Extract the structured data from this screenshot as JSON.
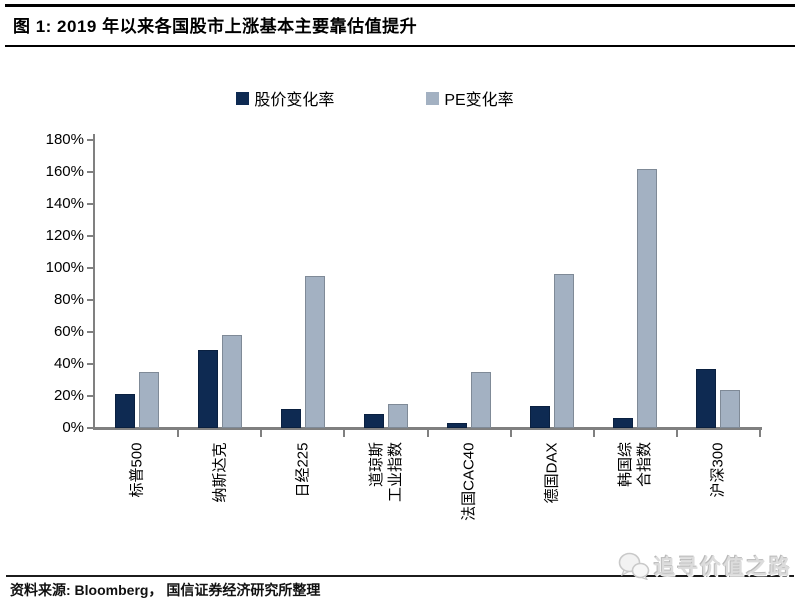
{
  "header": {
    "title": "图 1: 2019 年以来各国股市上涨基本主要靠估值提升"
  },
  "legend": [
    {
      "label": "股价变化率",
      "color": "#0e2a52"
    },
    {
      "label": "PE变化率",
      "color": "#a3b1c2"
    }
  ],
  "chart_data": {
    "type": "bar",
    "title": "2019 年以来各国股市上涨基本主要靠估值提升",
    "categories": [
      "标普500",
      "纳斯达克",
      "日经225",
      "道琼斯\n工业指数",
      "法国CAC40",
      "德国DAX",
      "韩国综\n合指数",
      "沪深300"
    ],
    "series": [
      {
        "name": "股价变化率",
        "color": "#0e2a52",
        "values": [
          21,
          49,
          12,
          9,
          3,
          14,
          6,
          37
        ]
      },
      {
        "name": "PE变化率",
        "color": "#a3b1c2",
        "values": [
          35,
          58,
          95,
          15,
          35,
          96,
          162,
          24
        ]
      }
    ],
    "xlabel": "",
    "ylabel": "",
    "ylim": [
      0,
      180
    ],
    "ytick_step": 20,
    "yticks": [
      "180%",
      "160%",
      "140%",
      "120%",
      "100%",
      "80%",
      "60%",
      "40%",
      "20%",
      "0%"
    ],
    "grid": false,
    "legend_position": "top",
    "unit": "percent"
  },
  "footer": {
    "source": "资料来源: Bloomberg， 国信证券经济研究所整理"
  },
  "watermark": {
    "text": "追寻价值之路",
    "icon": "wechat-icon"
  }
}
